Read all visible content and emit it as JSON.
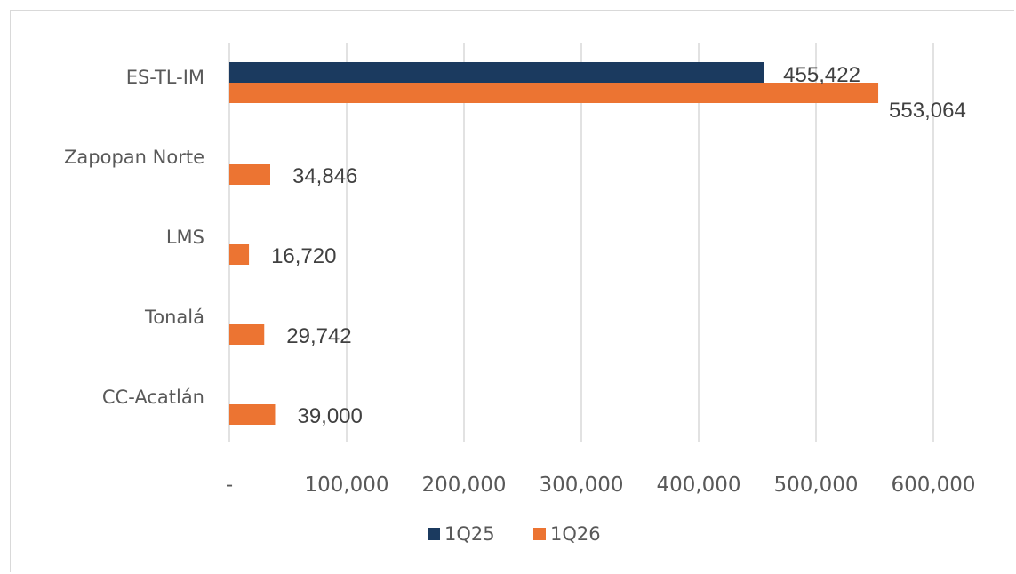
{
  "chart_data": {
    "type": "bar",
    "orientation": "horizontal",
    "title": "",
    "xlabel": "",
    "ylabel": "",
    "categories": [
      "ES-TL-IM",
      "Zapopan Norte",
      "LMS",
      "Tonalá",
      "CC-Acatlán"
    ],
    "series": [
      {
        "name": "1Q25",
        "values": [
          455422,
          null,
          null,
          null,
          null
        ],
        "labels": [
          "455,422",
          "",
          "",
          "",
          ""
        ]
      },
      {
        "name": "1Q26",
        "values": [
          553064,
          34846,
          16720,
          29742,
          39000
        ],
        "labels": [
          "553,064",
          "34,846",
          "16,720",
          "29,742",
          "39,000"
        ]
      }
    ],
    "xlim": [
      0,
      600000
    ],
    "xticks": [
      0,
      100000,
      200000,
      300000,
      400000,
      500000,
      600000
    ],
    "xtick_labels": [
      "-",
      "100,000",
      "200,000",
      "300,000",
      "400,000",
      "500,000",
      "600,000"
    ],
    "grid": true,
    "legend_position": "bottom",
    "colors": {
      "1Q25": "#1b3a5f",
      "1Q26": "#ec7432",
      "grid": "#d9d9d9",
      "text": "#595959"
    }
  }
}
